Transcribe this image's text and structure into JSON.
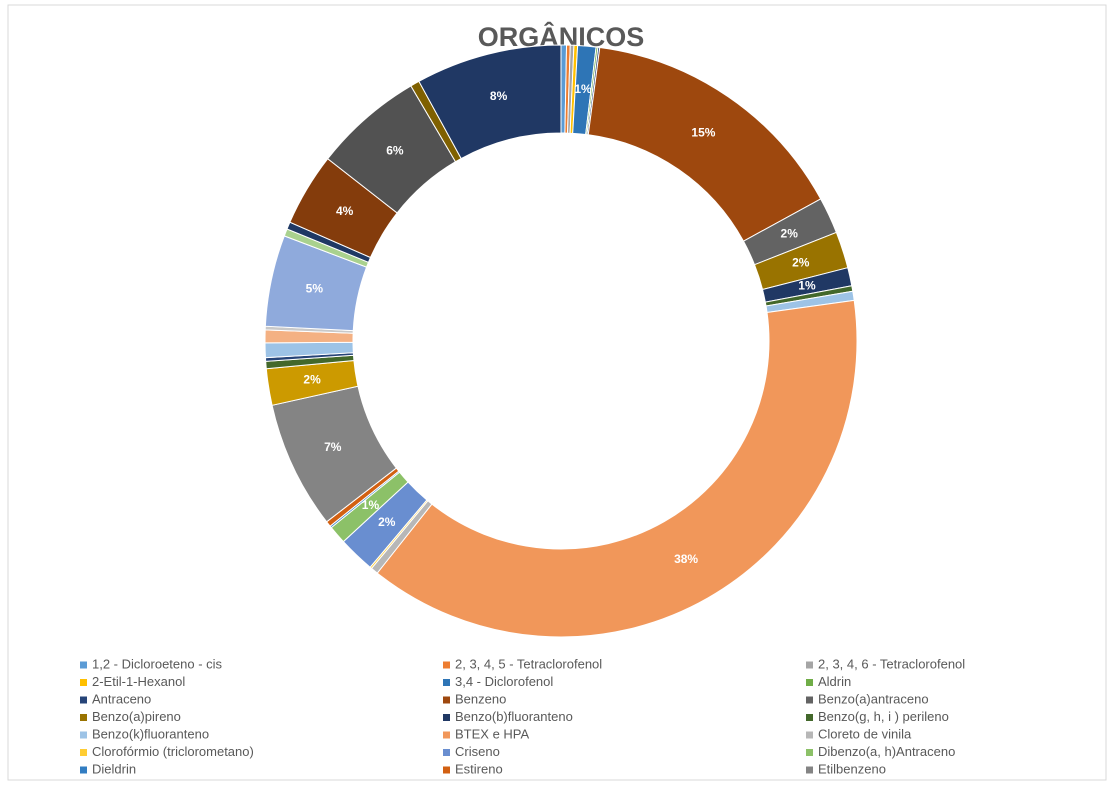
{
  "chart_data": {
    "type": "donut",
    "title": "ORGÂNICOS",
    "categories": [
      "1,2 - Dicloroeteno - cis",
      "2, 3, 4, 5 - Tetraclorofenol",
      "2, 3, 4, 6 - Tetraclorofenol",
      "2-Etil-1-Hexanol",
      "3,4 - Diclorofenol",
      "Aldrin",
      "Antraceno",
      "Benzeno",
      "Benzo(a)antraceno",
      "Benzo(a)pireno",
      "Benzo(b)fluoranteno",
      "Benzo(g, h, i ) perileno",
      "Benzo(k)fluoranteno",
      "BTEX e HPA",
      "Cloreto de vinila",
      "Clorofórmio (triclorometano)",
      "Criseno",
      "Dibenzo(a, h)Antraceno",
      "Dieldrin",
      "Estireno",
      "Etilbenzeno",
      null,
      null,
      null,
      null,
      null,
      null,
      null,
      null,
      null,
      null,
      null,
      null,
      null
    ],
    "values": [
      0.3,
      0.2,
      0.2,
      0.2,
      1,
      0.1,
      0.1,
      15,
      2,
      2,
      1,
      0.3,
      0.5,
      38,
      0.4,
      0.1,
      2,
      1,
      0.1,
      0.3,
      7,
      2,
      0.4,
      0.2,
      0.8,
      0.7,
      0.2,
      5,
      0.4,
      0.4,
      4,
      6,
      0.5,
      8
    ],
    "value_labels": [
      null,
      null,
      null,
      null,
      "1%",
      null,
      null,
      "15%",
      "2%",
      "2%",
      "1%",
      null,
      null,
      "38%",
      null,
      null,
      "2%",
      "1%",
      null,
      null,
      "7%",
      "2%",
      null,
      null,
      null,
      null,
      null,
      "5%",
      null,
      null,
      "4%",
      "6%",
      null,
      "8%"
    ],
    "colors": [
      "#5b9bd5",
      "#ed7d31",
      "#a5a5a5",
      "#ffc000",
      "#2e75b6",
      "#70ad47",
      "#264478",
      "#9e480e",
      "#636363",
      "#997300",
      "#203864",
      "#43682b",
      "#9dc3e6",
      "#f1975a",
      "#b7b7b7",
      "#ffcd33",
      "#698ed0",
      "#8cc168",
      "#327dc2",
      "#d26012",
      "#848484",
      "#cc9a00",
      "#43682b",
      "#264478",
      "#9dc3e6",
      "#f4b183",
      "#c9c9c9",
      "#8faadc",
      "#a9d18e",
      "#1f3864",
      "#843c0c",
      "#525252",
      "#7f6000",
      "#203864"
    ]
  }
}
